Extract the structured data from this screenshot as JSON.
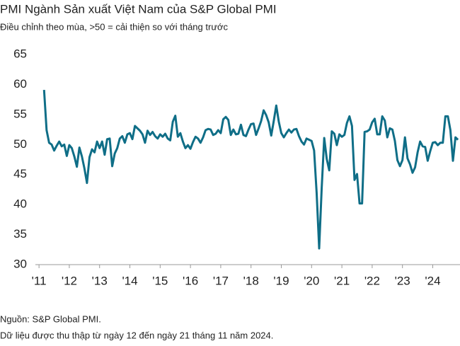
{
  "chart_data": {
    "type": "line",
    "title": "PMI Ngành Sản xuất Việt Nam của S&P Global PMI",
    "subtitle": "Điều chỉnh theo mùa, >50 = cải thiện so với tháng trước",
    "source": "Nguồn: S&P Global PMI.",
    "note": "Dữ liệu được thu thập từ ngày 12 đến ngày 21 tháng 11 năm 2024.",
    "x": [
      2011.167,
      2011.25,
      2011.333,
      2011.417,
      2011.5,
      2011.583,
      2011.667,
      2011.75,
      2011.833,
      2011.917,
      2012.0,
      2012.083,
      2012.167,
      2012.25,
      2012.333,
      2012.417,
      2012.5,
      2012.583,
      2012.667,
      2012.75,
      2012.833,
      2012.917,
      2013.0,
      2013.083,
      2013.167,
      2013.25,
      2013.333,
      2013.417,
      2013.5,
      2013.583,
      2013.667,
      2013.75,
      2013.833,
      2013.917,
      2014.0,
      2014.083,
      2014.167,
      2014.25,
      2014.333,
      2014.417,
      2014.5,
      2014.583,
      2014.667,
      2014.75,
      2014.833,
      2014.917,
      2015.0,
      2015.083,
      2015.167,
      2015.25,
      2015.333,
      2015.417,
      2015.5,
      2015.583,
      2015.667,
      2015.75,
      2015.833,
      2015.917,
      2016.0,
      2016.083,
      2016.167,
      2016.25,
      2016.333,
      2016.417,
      2016.5,
      2016.583,
      2016.667,
      2016.75,
      2016.833,
      2016.917,
      2017.0,
      2017.083,
      2017.167,
      2017.25,
      2017.333,
      2017.417,
      2017.5,
      2017.583,
      2017.667,
      2017.75,
      2017.833,
      2017.917,
      2018.0,
      2018.083,
      2018.167,
      2018.25,
      2018.333,
      2018.417,
      2018.5,
      2018.583,
      2018.667,
      2018.75,
      2018.833,
      2018.917,
      2019.0,
      2019.083,
      2019.167,
      2019.25,
      2019.333,
      2019.417,
      2019.5,
      2019.583,
      2019.667,
      2019.75,
      2019.833,
      2019.917,
      2020.0,
      2020.083,
      2020.167,
      2020.25,
      2020.333,
      2020.417,
      2020.5,
      2020.583,
      2020.667,
      2020.75,
      2020.833,
      2020.917,
      2021.0,
      2021.083,
      2021.167,
      2021.25,
      2021.333,
      2021.417,
      2021.5,
      2021.583,
      2021.667,
      2021.75,
      2021.833,
      2021.917,
      2022.0,
      2022.083,
      2022.167,
      2022.25,
      2022.333,
      2022.417,
      2022.5,
      2022.583,
      2022.667,
      2022.75,
      2022.833,
      2022.917,
      2023.0,
      2023.083,
      2023.167,
      2023.25,
      2023.333,
      2023.417,
      2023.5,
      2023.583,
      2023.667,
      2023.75,
      2023.833,
      2023.917,
      2024.0,
      2024.083,
      2024.167,
      2024.25,
      2024.333,
      2024.417,
      2024.5,
      2024.583,
      2024.667,
      2024.75,
      2024.833
    ],
    "values": [
      59.1,
      52.4,
      50.3,
      50.0,
      49.0,
      49.8,
      50.5,
      49.7,
      50.0,
      48.1,
      49.9,
      49.4,
      48.0,
      46.3,
      49.5,
      48.0,
      46.0,
      43.6,
      47.9,
      49.2,
      48.7,
      50.5,
      49.4,
      50.5,
      48.3,
      50.9,
      51.0,
      46.4,
      48.5,
      49.4,
      51.0,
      51.4,
      50.3,
      51.7,
      51.9,
      50.9,
      53.1,
      52.7,
      52.3,
      51.7,
      50.3,
      52.3,
      51.6,
      52.1,
      51.4,
      51.0,
      51.7,
      51.3,
      51.8,
      51.0,
      50.7,
      53.8,
      54.8,
      51.3,
      51.9,
      50.5,
      49.4,
      49.9,
      49.3,
      50.4,
      51.3,
      51.0,
      50.3,
      51.2,
      52.4,
      52.6,
      52.5,
      51.6,
      51.8,
      52.4,
      51.9,
      54.2,
      54.6,
      54.1,
      51.6,
      52.5,
      51.7,
      51.8,
      53.3,
      51.6,
      51.4,
      52.5,
      53.4,
      53.5,
      51.6,
      52.7,
      53.9,
      55.7,
      54.9,
      53.7,
      51.5,
      53.9,
      56.5,
      53.8,
      51.9,
      51.2,
      51.9,
      52.5,
      52.0,
      52.5,
      52.6,
      51.4,
      50.5,
      50.0,
      51.0,
      50.8,
      50.6,
      49.0,
      41.9,
      32.7,
      42.7,
      51.1,
      47.6,
      45.7,
      52.2,
      51.8,
      49.9,
      51.7,
      51.3,
      51.6,
      53.6,
      54.7,
      53.1,
      44.1,
      45.1,
      40.2,
      40.2,
      52.1,
      52.2,
      52.5,
      53.7,
      54.3,
      51.7,
      51.7,
      54.7,
      54.0,
      51.2,
      52.7,
      52.5,
      50.6,
      47.4,
      46.4,
      47.4,
      51.2,
      47.7,
      46.7,
      45.3,
      46.2,
      48.7,
      50.5,
      49.7,
      49.6,
      47.3,
      48.9,
      50.3,
      50.4,
      49.9,
      50.3,
      50.3,
      54.7,
      54.7,
      52.4,
      47.3,
      51.2,
      50.8
    ],
    "color": "#0f6e87",
    "xlim": [
      2010.88,
      2024.9
    ],
    "ylim": [
      30,
      65
    ],
    "yticks": [
      30,
      35,
      40,
      45,
      50,
      55,
      60,
      65
    ],
    "xticks": [
      {
        "value": 2011,
        "label": "'11"
      },
      {
        "value": 2012,
        "label": "'12"
      },
      {
        "value": 2013,
        "label": "'13"
      },
      {
        "value": 2014,
        "label": "'14"
      },
      {
        "value": 2015,
        "label": "'15"
      },
      {
        "value": 2016,
        "label": "'16"
      },
      {
        "value": 2017,
        "label": "'17"
      },
      {
        "value": 2018,
        "label": "'18"
      },
      {
        "value": 2019,
        "label": "'19"
      },
      {
        "value": 2020,
        "label": "'20"
      },
      {
        "value": 2021,
        "label": "'21"
      },
      {
        "value": 2022,
        "label": "'22"
      },
      {
        "value": 2023,
        "label": "'23"
      },
      {
        "value": 2024,
        "label": "'24"
      }
    ]
  }
}
